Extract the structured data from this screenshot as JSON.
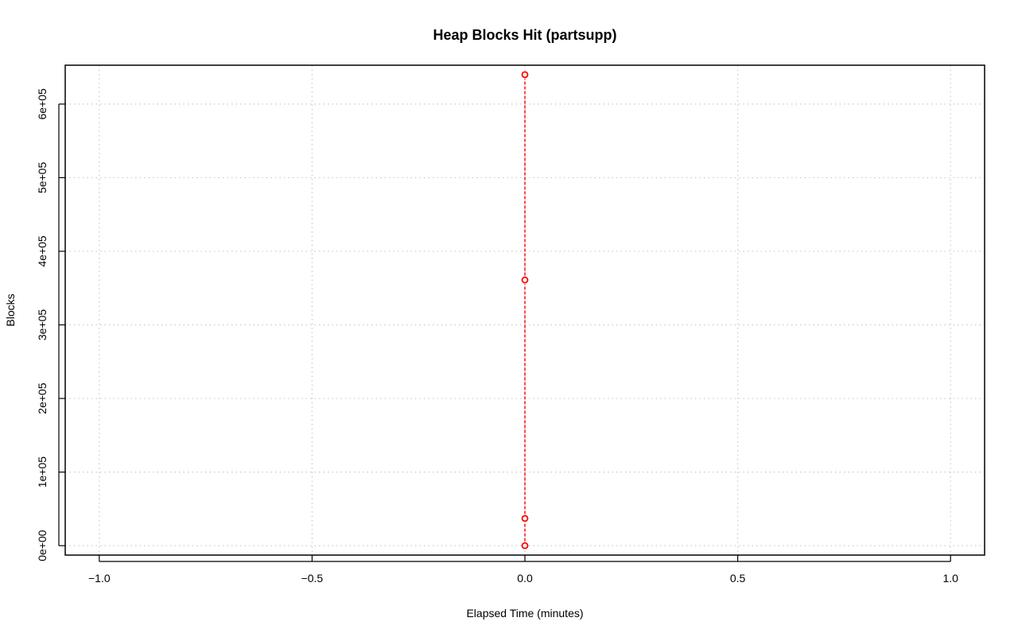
{
  "chart_data": {
    "type": "scatter",
    "title": "Heap Blocks Hit (partsupp)",
    "xlabel": "Elapsed Time (minutes)",
    "ylabel": "Blocks",
    "xlim": [
      -1.08,
      1.08
    ],
    "ylim": [
      -12800,
      652800
    ],
    "x_ticks": [
      -1.0,
      -0.5,
      0.0,
      0.5,
      1.0
    ],
    "x_tick_labels": [
      "−1.0",
      "−0.5",
      "0.0",
      "0.5",
      "1.0"
    ],
    "y_ticks": [
      0,
      100000,
      200000,
      300000,
      400000,
      500000,
      600000
    ],
    "y_tick_labels": [
      "0e+00",
      "1e+05",
      "2e+05",
      "3e+05",
      "4e+05",
      "5e+05",
      "6e+05"
    ],
    "grid": true,
    "series": [
      {
        "color": "#ff0000",
        "line_style": "dashed",
        "marker": "open-circle",
        "points": [
          {
            "x": 0.0,
            "y": 0
          },
          {
            "x": 0.0,
            "y": 37000
          },
          {
            "x": 0.0,
            "y": 361000
          },
          {
            "x": 0.0,
            "y": 640000
          }
        ]
      }
    ]
  }
}
